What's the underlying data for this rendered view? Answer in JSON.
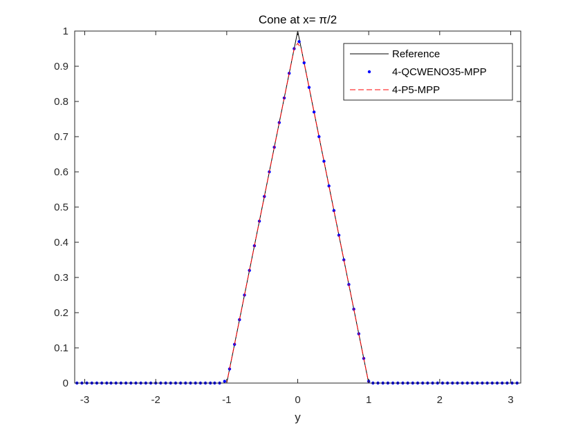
{
  "chart_data": {
    "type": "line",
    "title": "Cone at x= π/2",
    "xlabel": "y",
    "ylabel": "",
    "xlim": [
      -3.1416,
      3.1416
    ],
    "ylim": [
      0,
      1
    ],
    "xticks": [
      -3,
      -2,
      -1,
      0,
      1,
      2,
      3
    ],
    "xtick_labels": [
      "-3",
      "-2",
      "-1",
      "0",
      "1",
      "2",
      "3"
    ],
    "yticks": [
      0,
      0.1,
      0.2,
      0.3,
      0.4,
      0.5,
      0.6,
      0.7,
      0.8,
      0.9,
      1
    ],
    "ytick_labels": [
      "0",
      "0.1",
      "0.2",
      "0.3",
      "0.4",
      "0.5",
      "0.6",
      "0.7",
      "0.8",
      "0.9",
      "1"
    ],
    "grid": false,
    "legend_position": "top-right",
    "series": [
      {
        "name": "Reference",
        "style": "solid",
        "color": "#000000",
        "x": [
          -3.1416,
          -1.0,
          0.0,
          1.0,
          3.1416
        ],
        "y": [
          0,
          0,
          1,
          0,
          0
        ]
      },
      {
        "name": "4-QCWENO35-MPP",
        "style": "dots",
        "color": "#0000ff",
        "x": [
          -3.11,
          -3.04,
          -2.97,
          -2.9,
          -2.83,
          -2.76,
          -2.69,
          -2.63,
          -2.56,
          -2.49,
          -2.42,
          -2.35,
          -2.28,
          -2.21,
          -2.14,
          -2.07,
          -2.0,
          -1.93,
          -1.86,
          -1.79,
          -1.72,
          -1.65,
          -1.58,
          -1.51,
          -1.44,
          -1.37,
          -1.3,
          -1.23,
          -1.17,
          -1.1,
          -1.03,
          -0.96,
          -0.89,
          -0.82,
          -0.75,
          -0.68,
          -0.61,
          -0.54,
          -0.47,
          -0.4,
          -0.33,
          -0.26,
          -0.19,
          -0.12,
          -0.05,
          0.02,
          0.09,
          0.16,
          0.23,
          0.3,
          0.37,
          0.44,
          0.51,
          0.58,
          0.65,
          0.72,
          0.79,
          0.86,
          0.93,
          1.0,
          1.06,
          1.13,
          1.2,
          1.27,
          1.34,
          1.41,
          1.48,
          1.55,
          1.62,
          1.69,
          1.76,
          1.83,
          1.9,
          1.97,
          2.04,
          2.11,
          2.18,
          2.25,
          2.32,
          2.39,
          2.46,
          2.53,
          2.6,
          2.67,
          2.74,
          2.81,
          2.88,
          2.95,
          3.02,
          3.09
        ],
        "y": [
          0,
          0,
          0,
          0,
          0,
          0,
          0,
          0,
          0,
          0,
          0,
          0,
          0,
          0,
          0,
          0,
          0,
          0,
          0,
          0,
          0,
          0,
          0,
          0,
          0,
          0,
          0,
          0,
          0,
          0,
          0.005,
          0.04,
          0.11,
          0.18,
          0.25,
          0.32,
          0.39,
          0.46,
          0.53,
          0.6,
          0.67,
          0.74,
          0.81,
          0.88,
          0.95,
          0.97,
          0.91,
          0.84,
          0.77,
          0.7,
          0.63,
          0.56,
          0.49,
          0.42,
          0.35,
          0.28,
          0.21,
          0.14,
          0.07,
          0.005,
          0,
          0,
          0,
          0,
          0,
          0,
          0,
          0,
          0,
          0,
          0,
          0,
          0,
          0,
          0,
          0,
          0,
          0,
          0,
          0,
          0,
          0,
          0,
          0,
          0,
          0,
          0,
          0,
          0,
          0
        ]
      },
      {
        "name": "4-P5-MPP",
        "style": "dashed",
        "color": "#ff0000",
        "x": [
          -3.1416,
          -1.0,
          -0.96,
          -0.05,
          0.0,
          0.05,
          0.96,
          1.0,
          3.1416
        ],
        "y": [
          0,
          0,
          0.04,
          0.95,
          0.965,
          0.95,
          0.04,
          0,
          0
        ]
      }
    ]
  }
}
